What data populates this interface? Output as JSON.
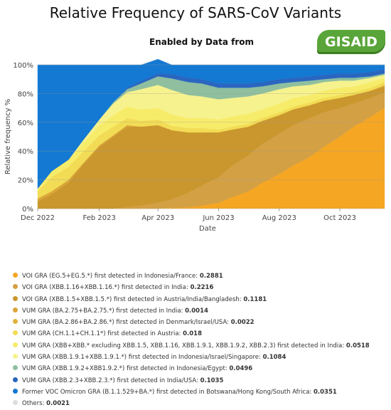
{
  "header": {
    "title": "Relative Frequency of SARS-CoV Variants",
    "subtitle": "Enabled by Data from",
    "logo_text": "GISAID"
  },
  "chart_data": {
    "type": "area",
    "stacked": true,
    "ylabel": "Relative frequency %",
    "xlabel": "Date",
    "ylim": [
      0,
      100
    ],
    "y_ticks": [
      "0%",
      "20%",
      "40%",
      "60%",
      "80%",
      "100%"
    ],
    "x_ticks": [
      "Dec 2022",
      "Feb 2023",
      "Apr 2023",
      "Jun 2023",
      "Aug 2023",
      "Oct 2023"
    ],
    "x_dates": [
      "2022-12-01",
      "2022-12-15",
      "2023-01-01",
      "2023-01-15",
      "2023-02-01",
      "2023-02-15",
      "2023-03-01",
      "2023-03-15",
      "2023-04-01",
      "2023-04-15",
      "2023-05-01",
      "2023-05-15",
      "2023-06-01",
      "2023-06-15",
      "2023-07-01",
      "2023-07-15",
      "2023-08-01",
      "2023-08-15",
      "2023-09-01",
      "2023-09-15",
      "2023-10-01",
      "2023-10-15",
      "2023-11-01",
      "2023-11-15"
    ],
    "grid": true,
    "legend_position": "bottom",
    "series": [
      {
        "label": "VOI GRA (EG.5+EG.5.*) first detected in Indonesia/France:",
        "value": "0.2881",
        "color": "#f5a623",
        "values": [
          0,
          0,
          0,
          0,
          0,
          0,
          0,
          0,
          0,
          0.5,
          1,
          2,
          4,
          8,
          12,
          18,
          24,
          30,
          36,
          43,
          50,
          57,
          64,
          70
        ]
      },
      {
        "label": "VOI GRA (XBB.1.16+XBB.1.16.*) first detected in India:",
        "value": "0.2216",
        "color": "#d4a044",
        "values": [
          0,
          0,
          0,
          0,
          0,
          0,
          1,
          2,
          4,
          6,
          10,
          14,
          18,
          22,
          25,
          27,
          28,
          28,
          27,
          24,
          20,
          16,
          13,
          11
        ]
      },
      {
        "label": "VOI GRA (XBB.1.5+XBB.1.5.*) first detected in Austria/India/Bangladesh:",
        "value": "0.1181",
        "color": "#c9972e",
        "values": [
          5,
          10,
          18,
          30,
          43,
          50,
          56,
          55,
          54,
          48,
          42,
          37,
          31,
          25,
          20,
          16,
          13,
          11,
          9,
          8,
          7,
          6,
          5,
          4
        ]
      },
      {
        "label": "VUM GRA (BA.2.75+BA.2.75.*) first detected in India:",
        "value": "0.0014",
        "color": "#d9a63a",
        "values": [
          2,
          2,
          2,
          1,
          1,
          1,
          1,
          0,
          0,
          0,
          0,
          0,
          0,
          0,
          0,
          0,
          0,
          0,
          0,
          0,
          0,
          0,
          0,
          0
        ]
      },
      {
        "label": "VUM GRA (BA.2.86+BA.2.86.*) first detected in Denmark/Israel/USA:",
        "value": "0.0022",
        "color": "#e0b43c",
        "values": [
          0,
          0,
          0,
          0,
          0,
          0,
          0,
          0,
          0,
          0,
          0,
          0,
          0,
          0,
          0,
          0,
          0,
          0,
          0,
          0,
          0,
          0,
          0,
          1
        ]
      },
      {
        "label": "VUM GRA (CH.1.1+CH.1.1*) first detected in Austria:",
        "value": "0.018",
        "color": "#f2dc55",
        "values": [
          5,
          10,
          9,
          8,
          7,
          6,
          5,
          4,
          4,
          3,
          3,
          3,
          2,
          2,
          2,
          2,
          2,
          2,
          2,
          2,
          2,
          2,
          2,
          2
        ]
      },
      {
        "label": "VUM GRA (XBB+XBB.* excluding XBB.1.5, XBB.1.16, XBB.1.9.1, XBB.1.9.2, XBB.2.3) first detected in India:",
        "value": "0.0518",
        "color": "#f7ec6a",
        "values": [
          2,
          4,
          5,
          6,
          7,
          8,
          8,
          8,
          8,
          8,
          7,
          7,
          7,
          7,
          7,
          6,
          6,
          6,
          5,
          5,
          5,
          4,
          4,
          3
        ]
      },
      {
        "label": "VUM GRA (XBB.1.9.1+XBB.1.9.1.*) first detected in Indonesia/Israel/Singapore:",
        "value": "0.1084",
        "color": "#f6f28e",
        "values": [
          0,
          0,
          0,
          2,
          4,
          8,
          10,
          14,
          16,
          17,
          16,
          15,
          14,
          13,
          12,
          11,
          10,
          8,
          7,
          6,
          5,
          4,
          3,
          2
        ]
      },
      {
        "label": "VUM GRA (XBB.1.9.2+XBB1.9.2.*) first detected in Indonesia/Egypt:",
        "value": "0.0496",
        "color": "#8fbf9f",
        "values": [
          0,
          0,
          0,
          0,
          0,
          1,
          2,
          4,
          6,
          8,
          9,
          9,
          8,
          7,
          6,
          5,
          4,
          3,
          3,
          2,
          2,
          2,
          1,
          1
        ]
      },
      {
        "label": "VUM GRA (XBB.2.3+XBB.2.3.*) first detected in India/USA:",
        "value": "0.1035",
        "color": "#2a66c0",
        "values": [
          0,
          0,
          0,
          0,
          0,
          0,
          1,
          2,
          2,
          3,
          3,
          3,
          3,
          3,
          3,
          3,
          3,
          3,
          3,
          3,
          3,
          3,
          3,
          3
        ]
      },
      {
        "label": "Former VOC Omicron GRA (B.1.1.529+BA.*) first detected in Botswana/Hong Kong/South Africa:",
        "value": "0.0351",
        "color": "#1479d2",
        "values": [
          86,
          74,
          66,
          53,
          38,
          26,
          16,
          11,
          10,
          6.5,
          9,
          10,
          13,
          13,
          13,
          12,
          10,
          9,
          8,
          7,
          6,
          6,
          5,
          3
        ]
      },
      {
        "label": "Others:",
        "value": "0.0021",
        "color": "#dddddd",
        "values": [
          0,
          0,
          0,
          0,
          0,
          0,
          0,
          0,
          0,
          0,
          0,
          0,
          0,
          0,
          0,
          0,
          0,
          0,
          0,
          0,
          0,
          0,
          0,
          0
        ]
      }
    ]
  }
}
